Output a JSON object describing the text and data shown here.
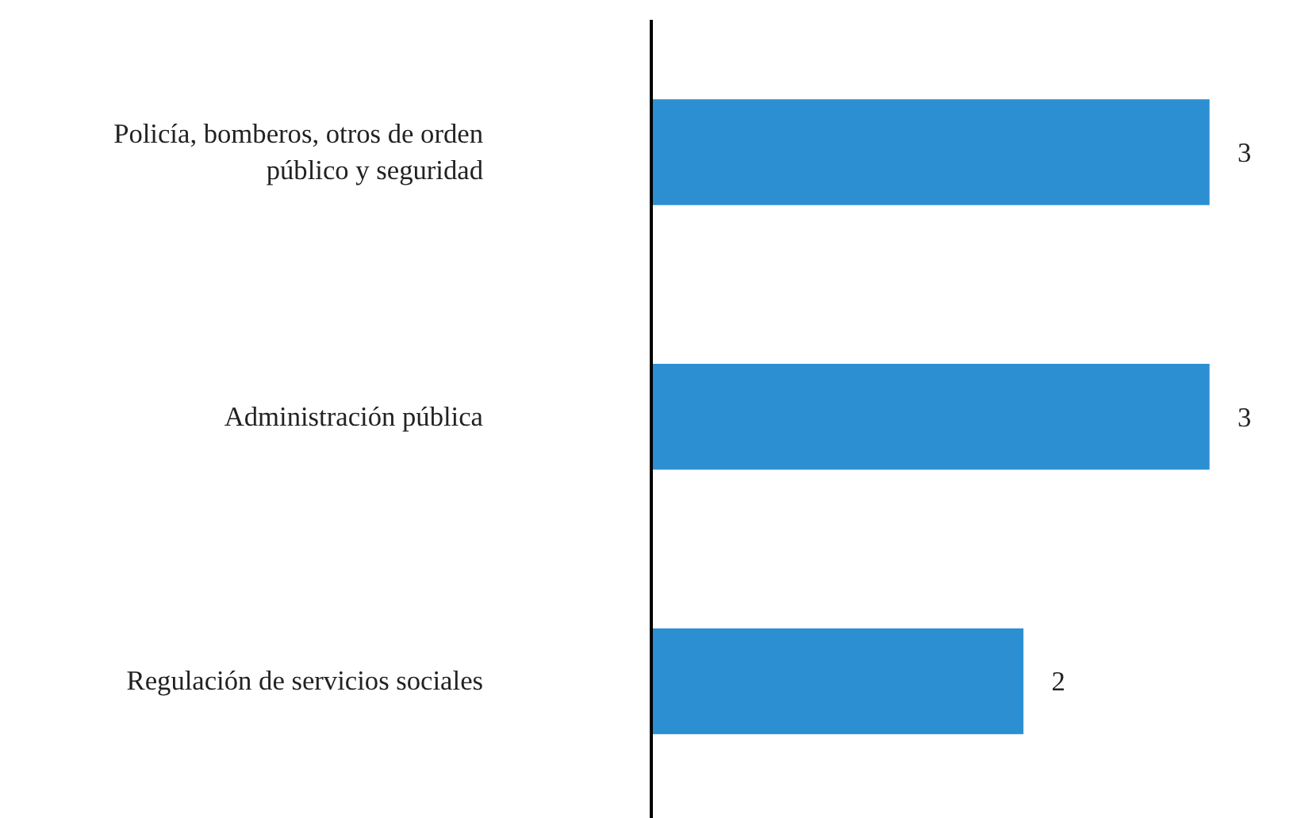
{
  "chart_data": {
    "type": "bar",
    "orientation": "horizontal",
    "categories": [
      "Policía, bomberos, otros de orden público y seguridad",
      "Administración pública",
      "Regulación de servicios sociales"
    ],
    "values": [
      3,
      3,
      2
    ],
    "color": "#2b8fd2",
    "data_labels": true,
    "grid": false
  }
}
